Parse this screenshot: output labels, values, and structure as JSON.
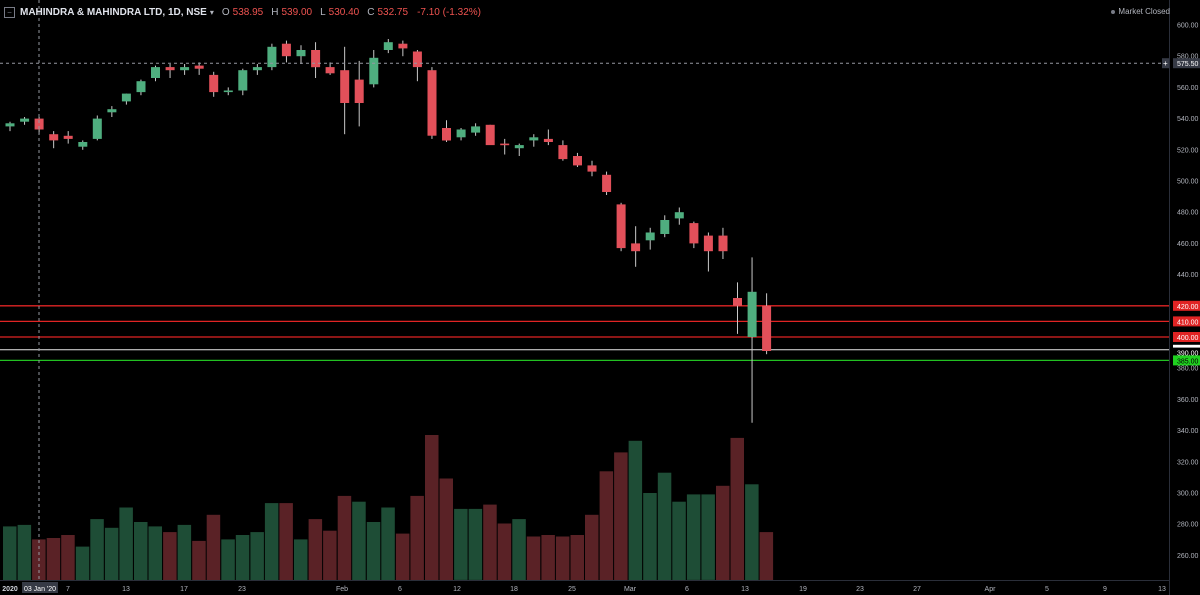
{
  "header": {
    "symbol": "MAHINDRA & MAHINDRA LTD, 1D, NSE",
    "o_label": "O",
    "o_value": "538.95",
    "h_label": "H",
    "h_value": "539.00",
    "l_label": "L",
    "l_value": "530.40",
    "c_label": "C",
    "c_value": "532.75",
    "change": "-7.10 (-1.32%)"
  },
  "market_status": "Market Closed",
  "colors": {
    "background": "#000000",
    "up": "#26a69a",
    "up_candle": "#4fae7f",
    "down_candle": "#e2505a",
    "up_volume": "#1e4d36",
    "down_volume": "#5a2226",
    "resistance_line": "#e02424",
    "support_line": "#22c022",
    "axis_text": "#b2b5be"
  },
  "chart_data": {
    "type": "candlestick",
    "price_axis": {
      "ticks": [
        600,
        580,
        560,
        540,
        520,
        500,
        480,
        460,
        440,
        420,
        400,
        380,
        360,
        340,
        320,
        300,
        280,
        260
      ],
      "ylim": [
        244,
        614
      ]
    },
    "time_axis": {
      "labels": [
        "2020",
        "7",
        "13",
        "17",
        "23",
        "Feb",
        "6",
        "12",
        "18",
        "25",
        "Mar",
        "6",
        "13",
        "19",
        "23",
        "27",
        "Apr",
        "5",
        "9",
        "13"
      ],
      "crosshair_label": "03 Jan '20"
    },
    "crosshair_price": "575.50",
    "horizontal_lines": [
      {
        "price": 420,
        "label": "420.00",
        "color": "red"
      },
      {
        "price": 410,
        "label": "410.00",
        "color": "red"
      },
      {
        "price": 400,
        "label": "400.00",
        "color": "red"
      },
      {
        "price": 391.8,
        "label": "391.80",
        "color": "white"
      },
      {
        "price": 390,
        "label": "390.00",
        "color": "dark"
      },
      {
        "price": 385,
        "label": "385.00",
        "color": "green"
      }
    ],
    "candles": [
      {
        "o": 535,
        "h": 538,
        "l": 532,
        "c": 537
      },
      {
        "o": 538,
        "h": 541,
        "l": 536,
        "c": 540
      },
      {
        "o": 540,
        "h": 541,
        "l": 530,
        "c": 533
      },
      {
        "o": 530,
        "h": 532,
        "l": 521,
        "c": 526
      },
      {
        "o": 529,
        "h": 532,
        "l": 524,
        "c": 527
      },
      {
        "o": 522,
        "h": 526,
        "l": 520,
        "c": 525
      },
      {
        "o": 527,
        "h": 542,
        "l": 526,
        "c": 540
      },
      {
        "o": 544,
        "h": 548,
        "l": 541,
        "c": 546
      },
      {
        "o": 551,
        "h": 556,
        "l": 549,
        "c": 556
      },
      {
        "o": 557,
        "h": 565,
        "l": 555,
        "c": 564
      },
      {
        "o": 566,
        "h": 574,
        "l": 564,
        "c": 573
      },
      {
        "o": 573,
        "h": 575,
        "l": 566,
        "c": 571
      },
      {
        "o": 571,
        "h": 575,
        "l": 568,
        "c": 573
      },
      {
        "o": 574,
        "h": 576,
        "l": 568,
        "c": 572
      },
      {
        "o": 568,
        "h": 570,
        "l": 554,
        "c": 557
      },
      {
        "o": 557,
        "h": 560,
        "l": 555,
        "c": 558
      },
      {
        "o": 558,
        "h": 572,
        "l": 555,
        "c": 571
      },
      {
        "o": 571,
        "h": 575,
        "l": 568,
        "c": 573
      },
      {
        "o": 573,
        "h": 588,
        "l": 571,
        "c": 586
      },
      {
        "o": 588,
        "h": 590,
        "l": 576,
        "c": 580
      },
      {
        "o": 580,
        "h": 587,
        "l": 575,
        "c": 584
      },
      {
        "o": 584,
        "h": 589,
        "l": 566,
        "c": 573
      },
      {
        "o": 573,
        "h": 576,
        "l": 568,
        "c": 569
      },
      {
        "o": 571,
        "h": 586,
        "l": 530,
        "c": 550
      },
      {
        "o": 565,
        "h": 577,
        "l": 535,
        "c": 550
      },
      {
        "o": 562,
        "h": 584,
        "l": 560,
        "c": 579
      },
      {
        "o": 584,
        "h": 591,
        "l": 582,
        "c": 589
      },
      {
        "o": 588,
        "h": 590,
        "l": 580,
        "c": 585
      },
      {
        "o": 583,
        "h": 584,
        "l": 564,
        "c": 573
      },
      {
        "o": 571,
        "h": 573,
        "l": 527,
        "c": 529
      },
      {
        "o": 534,
        "h": 539,
        "l": 525,
        "c": 526
      },
      {
        "o": 528,
        "h": 534,
        "l": 526,
        "c": 533
      },
      {
        "o": 531,
        "h": 537,
        "l": 529,
        "c": 535
      },
      {
        "o": 536,
        "h": 536,
        "l": 525,
        "c": 523
      },
      {
        "o": 524,
        "h": 527,
        "l": 517,
        "c": 523
      },
      {
        "o": 521,
        "h": 524,
        "l": 516,
        "c": 523
      },
      {
        "o": 526,
        "h": 530,
        "l": 522,
        "c": 528
      },
      {
        "o": 527,
        "h": 533,
        "l": 523,
        "c": 525
      },
      {
        "o": 523,
        "h": 526,
        "l": 513,
        "c": 514
      },
      {
        "o": 516,
        "h": 518,
        "l": 509,
        "c": 510
      },
      {
        "o": 510,
        "h": 513,
        "l": 503,
        "c": 506
      },
      {
        "o": 504,
        "h": 506,
        "l": 491,
        "c": 493
      },
      {
        "o": 485,
        "h": 486,
        "l": 455,
        "c": 457
      },
      {
        "o": 460,
        "h": 471,
        "l": 445,
        "c": 455
      },
      {
        "o": 462,
        "h": 470,
        "l": 456,
        "c": 467
      },
      {
        "o": 466,
        "h": 478,
        "l": 464,
        "c": 475
      },
      {
        "o": 476,
        "h": 483,
        "l": 472,
        "c": 480
      },
      {
        "o": 473,
        "h": 474,
        "l": 457,
        "c": 460
      },
      {
        "o": 465,
        "h": 467,
        "l": 442,
        "c": 455
      },
      {
        "o": 465,
        "h": 470,
        "l": 450,
        "c": 455
      },
      {
        "o": 425,
        "h": 435,
        "l": 402,
        "c": 420
      },
      {
        "o": 400,
        "h": 451,
        "l": 345,
        "c": 429
      },
      {
        "o": 420,
        "h": 428,
        "l": 389,
        "c": 391
      }
    ],
    "volume": [
      {
        "v": 0.37,
        "dir": "up"
      },
      {
        "v": 0.38,
        "dir": "up"
      },
      {
        "v": 0.28,
        "dir": "down"
      },
      {
        "v": 0.29,
        "dir": "down"
      },
      {
        "v": 0.31,
        "dir": "down"
      },
      {
        "v": 0.23,
        "dir": "up"
      },
      {
        "v": 0.42,
        "dir": "up"
      },
      {
        "v": 0.36,
        "dir": "up"
      },
      {
        "v": 0.5,
        "dir": "up"
      },
      {
        "v": 0.4,
        "dir": "up"
      },
      {
        "v": 0.37,
        "dir": "up"
      },
      {
        "v": 0.33,
        "dir": "down"
      },
      {
        "v": 0.38,
        "dir": "up"
      },
      {
        "v": 0.27,
        "dir": "down"
      },
      {
        "v": 0.45,
        "dir": "down"
      },
      {
        "v": 0.28,
        "dir": "up"
      },
      {
        "v": 0.31,
        "dir": "up"
      },
      {
        "v": 0.33,
        "dir": "up"
      },
      {
        "v": 0.53,
        "dir": "up"
      },
      {
        "v": 0.53,
        "dir": "down"
      },
      {
        "v": 0.28,
        "dir": "up"
      },
      {
        "v": 0.42,
        "dir": "down"
      },
      {
        "v": 0.34,
        "dir": "down"
      },
      {
        "v": 0.58,
        "dir": "down"
      },
      {
        "v": 0.54,
        "dir": "up"
      },
      {
        "v": 0.4,
        "dir": "up"
      },
      {
        "v": 0.5,
        "dir": "up"
      },
      {
        "v": 0.32,
        "dir": "down"
      },
      {
        "v": 0.58,
        "dir": "down"
      },
      {
        "v": 1.0,
        "dir": "down"
      },
      {
        "v": 0.7,
        "dir": "down"
      },
      {
        "v": 0.49,
        "dir": "up"
      },
      {
        "v": 0.49,
        "dir": "up"
      },
      {
        "v": 0.52,
        "dir": "down"
      },
      {
        "v": 0.39,
        "dir": "down"
      },
      {
        "v": 0.42,
        "dir": "up"
      },
      {
        "v": 0.3,
        "dir": "down"
      },
      {
        "v": 0.31,
        "dir": "down"
      },
      {
        "v": 0.3,
        "dir": "down"
      },
      {
        "v": 0.31,
        "dir": "down"
      },
      {
        "v": 0.45,
        "dir": "down"
      },
      {
        "v": 0.75,
        "dir": "down"
      },
      {
        "v": 0.88,
        "dir": "down"
      },
      {
        "v": 0.96,
        "dir": "up"
      },
      {
        "v": 0.6,
        "dir": "up"
      },
      {
        "v": 0.74,
        "dir": "up"
      },
      {
        "v": 0.54,
        "dir": "up"
      },
      {
        "v": 0.59,
        "dir": "up"
      },
      {
        "v": 0.59,
        "dir": "up"
      },
      {
        "v": 0.65,
        "dir": "down"
      },
      {
        "v": 0.98,
        "dir": "down"
      },
      {
        "v": 0.66,
        "dir": "up"
      },
      {
        "v": 0.33,
        "dir": "down"
      }
    ]
  }
}
